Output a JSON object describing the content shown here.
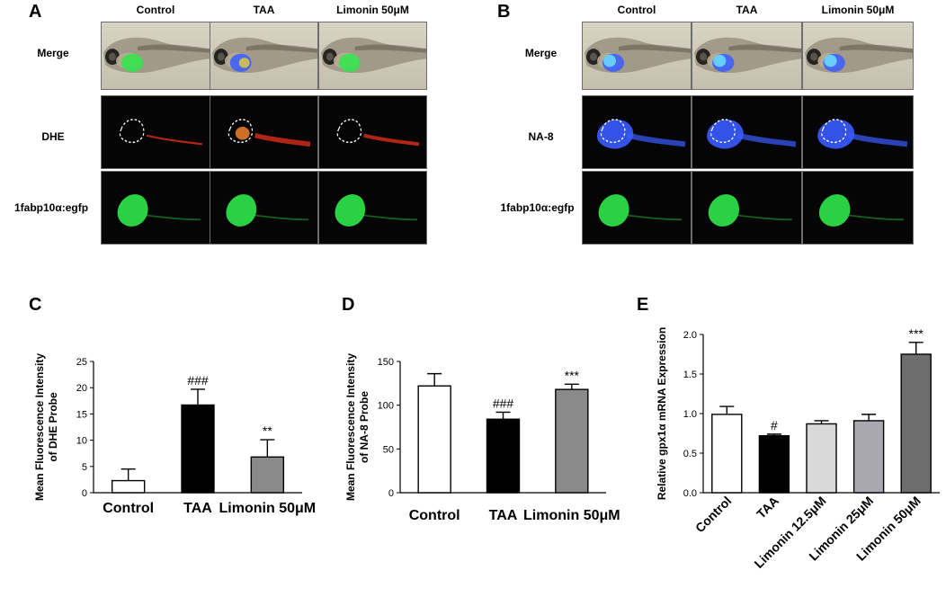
{
  "panels": {
    "a": {
      "label": "A",
      "columns": [
        "Control",
        "TAA",
        "Limonin 50μM"
      ],
      "rows": [
        "Merge",
        "DHE",
        "1fabp10α:egfp"
      ]
    },
    "b": {
      "label": "B",
      "columns": [
        "Control",
        "TAA",
        "Limonin 50μM"
      ],
      "rows": [
        "Merge",
        "NA-8",
        "1fabp10α:egfp"
      ]
    },
    "c": {
      "label": "C"
    },
    "d": {
      "label": "D"
    },
    "e": {
      "label": "E"
    }
  },
  "colors": {
    "black_bar": "#000000",
    "white_bar": "#ffffff",
    "gray_bar": "#8a8a8a",
    "light_gray_bar": "#d9d9d9",
    "mid_gray_bar": "#a8a8ae",
    "dark_gray_bar": "#6e6e6e",
    "egfp_green": "#2ee84a",
    "dhe_red": "#e8321c",
    "na8_blue": "#3a5cff"
  },
  "chart_data": [
    {
      "id": "C",
      "type": "bar",
      "categories": [
        "Control",
        "TAA",
        "Limonin 50μM"
      ],
      "values": [
        2.3,
        16.7,
        6.8
      ],
      "errors": [
        2.2,
        3.0,
        3.3
      ],
      "annotations": [
        "",
        "###",
        "**"
      ],
      "bar_colors": [
        "#ffffff",
        "#000000",
        "#8a8a8a"
      ],
      "ylabel": "Mean Fluorescence Intensity\nof DHE Probe",
      "ylim": [
        0,
        25
      ],
      "yticks": [
        0,
        5,
        10,
        15,
        20,
        25
      ],
      "xtick_rotation": 0
    },
    {
      "id": "D",
      "type": "bar",
      "categories": [
        "Control",
        "TAA",
        "Limonin 50μM"
      ],
      "values": [
        122,
        84,
        118
      ],
      "errors": [
        14,
        8,
        6
      ],
      "annotations": [
        "",
        "###",
        "***"
      ],
      "bar_colors": [
        "#ffffff",
        "#000000",
        "#8a8a8a"
      ],
      "ylabel": "Mean Fluorescence Intensity\nof NA-8 Probe",
      "ylim": [
        0,
        150
      ],
      "yticks": [
        0,
        50,
        100,
        150
      ],
      "xtick_rotation": 0
    },
    {
      "id": "E",
      "type": "bar",
      "categories": [
        "Control",
        "TAA",
        "Limonin 12.5μM",
        "Limonin 25μM",
        "Limonin 50μM"
      ],
      "values": [
        0.99,
        0.72,
        0.87,
        0.91,
        1.75
      ],
      "errors": [
        0.1,
        0.02,
        0.04,
        0.08,
        0.15
      ],
      "annotations": [
        "",
        "#",
        "",
        "",
        "***"
      ],
      "bar_colors": [
        "#ffffff",
        "#000000",
        "#d9d9d9",
        "#a8a8ae",
        "#6e6e6e"
      ],
      "ylabel": "Relative gpx1α mRNA Expression",
      "ylim": [
        0,
        2.0
      ],
      "yticks": [
        "0.0",
        "0.5",
        "1.0",
        "1.5",
        "2.0"
      ],
      "xtick_rotation": -45
    }
  ]
}
